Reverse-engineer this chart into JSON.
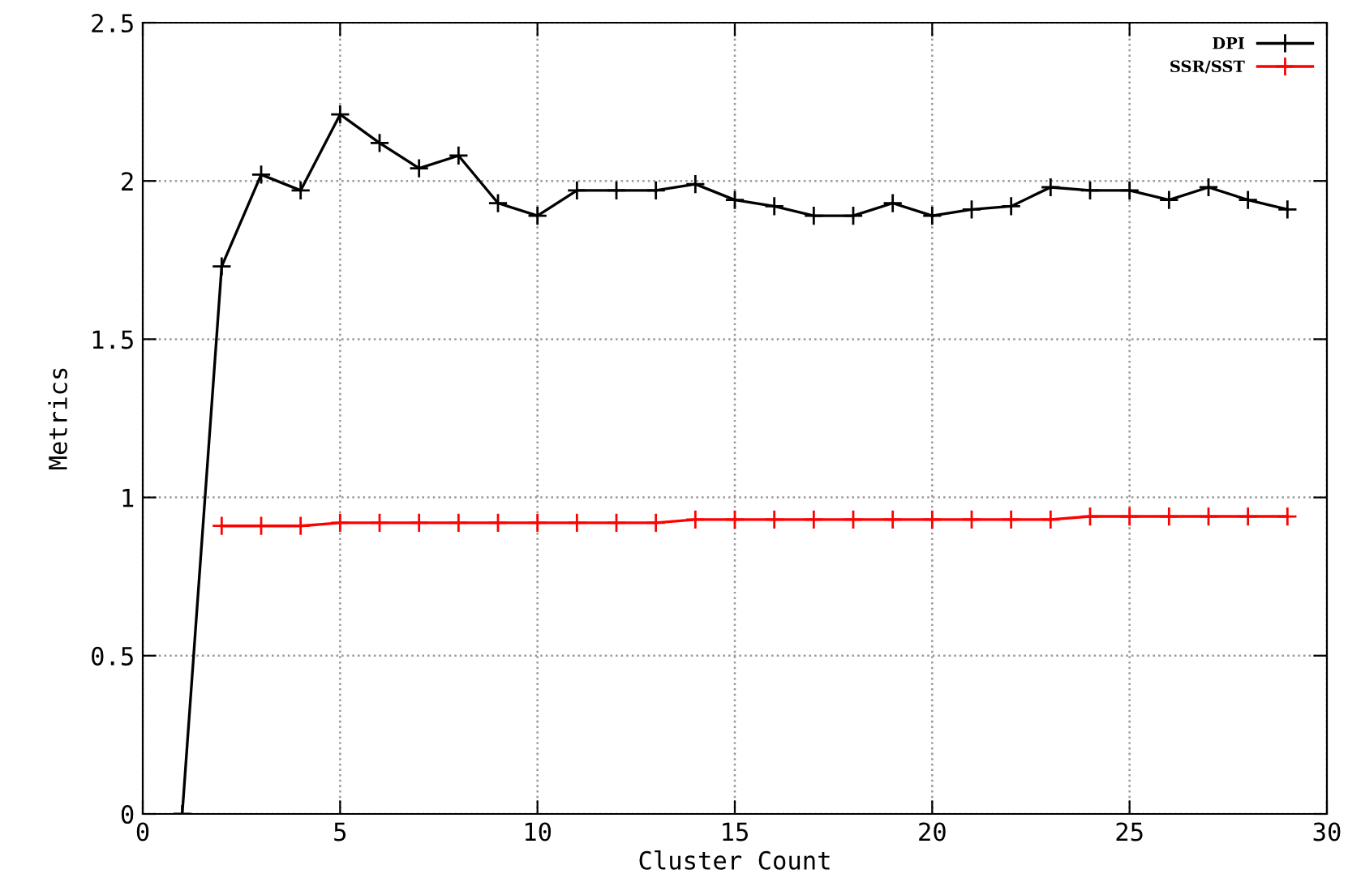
{
  "chart_data": {
    "type": "line",
    "xlabel": "Cluster Count",
    "ylabel": "Metrics",
    "x": [
      1,
      2,
      3,
      4,
      5,
      6,
      7,
      8,
      9,
      10,
      11,
      12,
      13,
      14,
      15,
      16,
      17,
      18,
      19,
      20,
      21,
      22,
      23,
      24,
      25,
      26,
      27,
      28,
      29
    ],
    "series": [
      {
        "name": "DPI",
        "color": "#000000",
        "values": [
          0,
          1.73,
          2.02,
          1.97,
          2.21,
          2.12,
          2.04,
          2.08,
          1.93,
          1.89,
          1.97,
          1.97,
          1.97,
          1.99,
          1.94,
          1.92,
          1.89,
          1.89,
          1.93,
          1.89,
          1.91,
          1.92,
          1.98,
          1.97,
          1.97,
          1.94,
          1.98,
          1.94,
          1.91
        ]
      },
      {
        "name": "SSR/SST",
        "color": "#ff0000",
        "values": [
          null,
          0.91,
          0.91,
          0.91,
          0.92,
          0.92,
          0.92,
          0.92,
          0.92,
          0.92,
          0.92,
          0.92,
          0.92,
          0.93,
          0.93,
          0.93,
          0.93,
          0.93,
          0.93,
          0.93,
          0.93,
          0.93,
          0.93,
          0.94,
          0.94,
          0.94,
          0.94,
          0.94,
          0.94
        ]
      }
    ],
    "xlim": [
      0,
      30
    ],
    "xticks": [
      0,
      5,
      10,
      15,
      20,
      25,
      30
    ],
    "ylim": [
      0,
      2.5
    ],
    "yticks": [
      0,
      0.5,
      1,
      1.5,
      2,
      2.5
    ],
    "grid": true,
    "legend": "top right",
    "marker": "cross",
    "line_style": "solid"
  }
}
